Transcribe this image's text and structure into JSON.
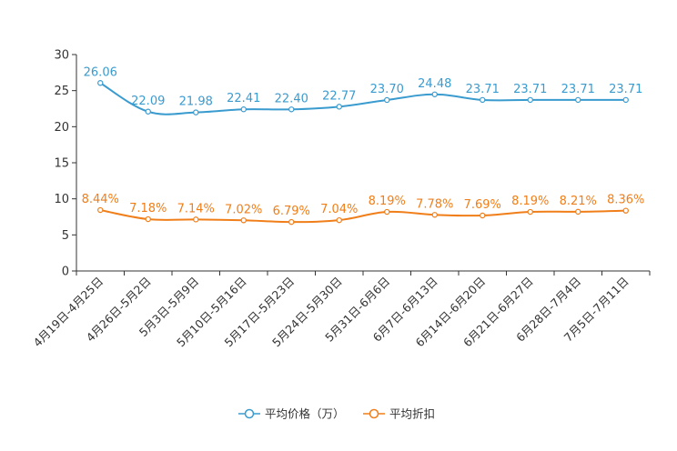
{
  "chart_data": {
    "type": "line",
    "title": "",
    "xlabel": "",
    "ylabel": "",
    "ylim": [
      0,
      30
    ],
    "yticks": [
      "0",
      "5",
      "10",
      "15",
      "20",
      "25",
      "30"
    ],
    "categories": [
      "4月19日-4月25日",
      "4月26日-5月2日",
      "5月3日-5月9日",
      "5月10日-5月16日",
      "5月17日-5月23日",
      "5月24日-5月30日",
      "5月31日-6月6日",
      "6月7日-6月13日",
      "6月14日-6月20日",
      "6月21日-6月27日",
      "6月28日-7月4日",
      "7月5日-7月11日"
    ],
    "series": [
      {
        "name": "平均价格（万）",
        "color": "#3a9bcf",
        "values": [
          26.06,
          22.09,
          21.98,
          22.41,
          22.4,
          22.77,
          23.7,
          24.48,
          23.71,
          23.71,
          23.71,
          23.71
        ],
        "labels": [
          "26.06",
          "22.09",
          "21.98",
          "22.41",
          "22.40",
          "22.77",
          "23.70",
          "24.48",
          "23.71",
          "23.71",
          "23.71",
          "23.71"
        ]
      },
      {
        "name": "平均折扣",
        "color": "#f07e19",
        "values": [
          8.44,
          7.18,
          7.14,
          7.02,
          6.79,
          7.04,
          8.19,
          7.78,
          7.69,
          8.19,
          8.21,
          8.36
        ],
        "labels": [
          "8.44%",
          "7.18%",
          "7.14%",
          "7.02%",
          "6.79%",
          "7.04%",
          "8.19%",
          "7.78%",
          "7.69%",
          "8.19%",
          "8.21%",
          "8.36%"
        ]
      }
    ],
    "legend_position": "bottom-center"
  }
}
